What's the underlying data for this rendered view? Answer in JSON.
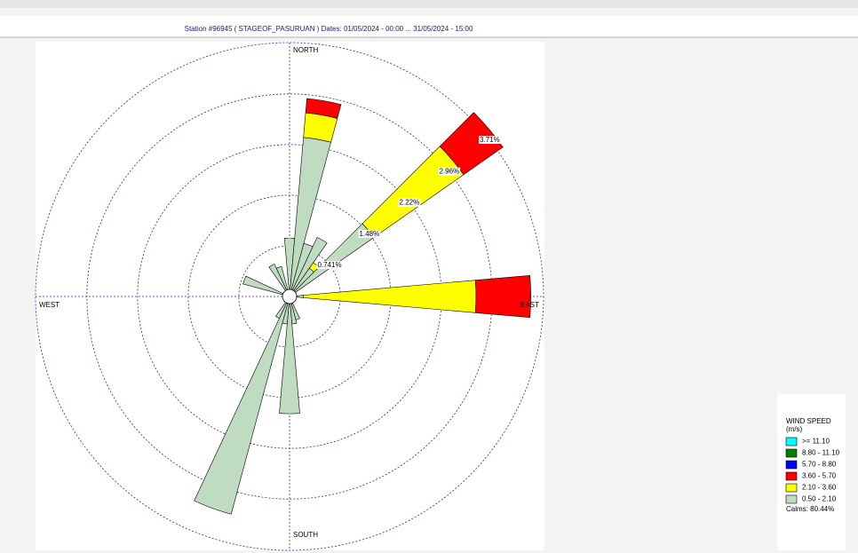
{
  "chart_data": {
    "type": "windrose",
    "title": "Station #96945 ( STAGEOF_PASURUAN )  Dates: 01/05/2024 - 00:00 ... 31/05/2024 - 15:00",
    "compass": [
      "NORTH",
      "EAST",
      "SOUTH",
      "WEST"
    ],
    "directions": [
      0,
      10,
      20,
      30,
      40,
      50,
      90,
      160,
      170,
      180,
      190,
      200,
      210,
      290,
      330,
      340
    ],
    "series": [
      {
        "name": "0.50 - 2.10",
        "color": "#c0dcc0",
        "values": [
          0.75,
          2.23,
          0.7,
          0.85,
          0.4,
          1.4,
          0.1,
          0.25,
          0.3,
          1.61,
          0.3,
          3.19,
          0.25,
          0.6,
          0.42,
          0.35
        ]
      },
      {
        "name": "2.10 - 3.60",
        "color": "#ffff00",
        "values": [
          0,
          0.36,
          0,
          0,
          0.1,
          1.6,
          2.52,
          0,
          0,
          0,
          0,
          0,
          0,
          0,
          0,
          0
        ]
      },
      {
        "name": "3.60 - 5.70",
        "color": "#ff0000",
        "values": [
          0,
          0.21,
          0,
          0,
          0,
          0.7,
          0.8,
          0,
          0,
          0,
          0,
          0,
          0,
          0,
          0,
          0
        ]
      },
      {
        "name": "5.70 - 8.80",
        "color": "#0000ff",
        "values": [
          0,
          0,
          0,
          0,
          0,
          0,
          0,
          0,
          0,
          0,
          0,
          0,
          0,
          0,
          0,
          0
        ]
      },
      {
        "name": "8.80 - 11.10",
        "color": "#008000",
        "values": [
          0,
          0,
          0,
          0,
          0,
          0,
          0,
          0,
          0,
          0,
          0,
          0,
          0,
          0,
          0,
          0
        ]
      },
      {
        "name": ">= 11.10",
        "color": "#00ffff",
        "values": [
          0,
          0,
          0,
          0,
          0,
          0,
          0,
          0,
          0,
          0,
          0,
          0,
          0,
          0,
          0,
          0
        ]
      }
    ],
    "rlim": [
      0,
      3.71
    ],
    "rticks": [
      {
        "value": 0.741,
        "label": "0.741%"
      },
      {
        "value": 1.48,
        "label": "1.48%"
      },
      {
        "value": 2.22,
        "label": "2.22%"
      },
      {
        "value": 2.96,
        "label": "2.96%"
      },
      {
        "value": 3.71,
        "label": "3.71%"
      }
    ],
    "legend_title": "WIND SPEED",
    "legend_unit": "(m/s)",
    "calms": "Calms: 80.44%"
  }
}
